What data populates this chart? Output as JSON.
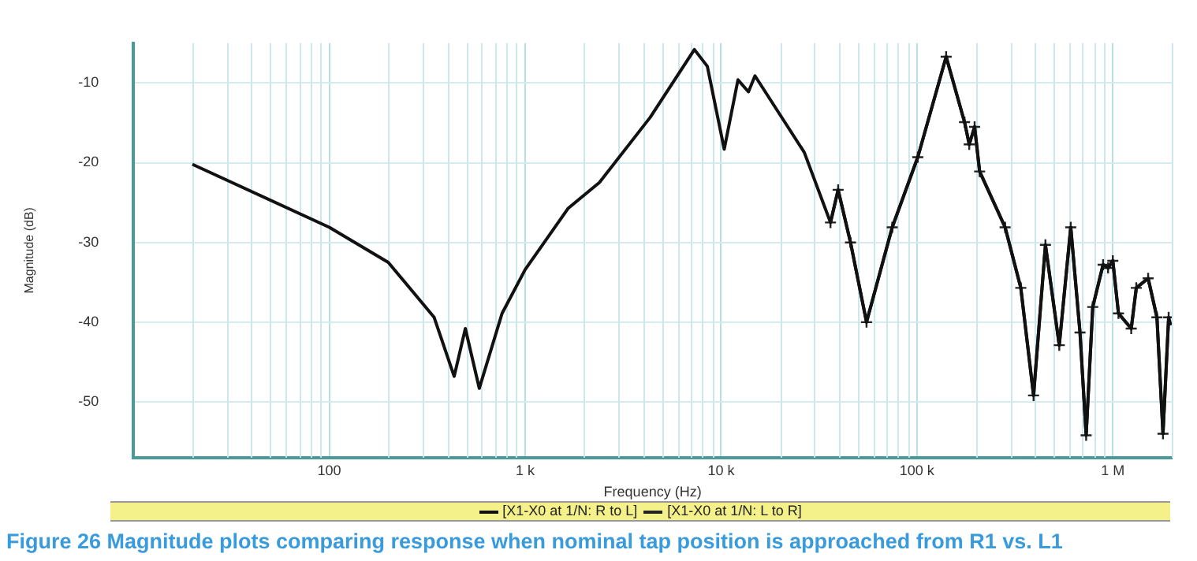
{
  "chart_data": {
    "type": "line",
    "xlabel": "Frequency (Hz)",
    "ylabel": "Magnitude (dB)",
    "log": "x",
    "grid": true,
    "legend": "bottom",
    "line_style": "solid",
    "xlim": [
      10,
      2000000
    ],
    "ylim": [
      -57,
      -5
    ],
    "xticks": [
      {
        "value": 100,
        "label": "100"
      },
      {
        "value": 1000,
        "label": "1 k"
      },
      {
        "value": 10000,
        "label": "10 k"
      },
      {
        "value": 100000,
        "label": "100 k"
      },
      {
        "value": 1000000,
        "label": "1 M"
      }
    ],
    "yticks": [
      -10,
      -20,
      -30,
      -40,
      -50
    ],
    "annotations": [
      "Figure 26 Magnitude plots comparing response when nominal tap position is approached from R1 vs. L1"
    ],
    "series": [
      {
        "name": "[X1-X0 at 1/N: R to L]",
        "color": "#111111",
        "marker": "none",
        "x": [
          20,
          100,
          200,
          343,
          434,
          495,
          583,
          762,
          1000,
          1660,
          2390,
          4350,
          7310,
          8510,
          10380,
          12200,
          13800,
          14900,
          26600,
          36200,
          39600,
          45800,
          55300,
          74800,
          101000,
          141000,
          175000,
          185000,
          197000,
          209000,
          282000,
          339000,
          394000,
          453000,
          533000,
          610000,
          680000,
          731000,
          790000,
          892000,
          946000,
          1000000,
          1069000,
          1242000,
          1318000,
          1515000,
          1680000,
          1804000,
          1928000,
          1977000
        ],
        "values": [
          -20.2,
          -28.1,
          -32.5,
          -39.4,
          -46.8,
          -40.8,
          -48.3,
          -38.9,
          -33.4,
          -25.7,
          -22.5,
          -14.3,
          -5.8,
          -7.9,
          -18.3,
          -9.6,
          -11.1,
          -9.1,
          -18.7,
          -27.5,
          -23.4,
          -30,
          -40,
          -28.1,
          -19.3,
          -6.7,
          -14.9,
          -17.7,
          -15.5,
          -21.1,
          -28.1,
          -35.7,
          -49.2,
          -30.3,
          -42.9,
          -28.1,
          -41.3,
          -54.2,
          -38.1,
          -32.8,
          -33.2,
          -32.3,
          -38.9,
          -40.8,
          -35.7,
          -34.5,
          -39.4,
          -54,
          -39.4,
          -40.4
        ]
      },
      {
        "name": "[X1-X0 at 1/N: L to R]",
        "color": "#222222",
        "marker": "cross",
        "x": [
          36200,
          39600,
          45800,
          55300,
          74800,
          101000,
          141000,
          175000,
          185000,
          197000,
          209000,
          282000,
          339000,
          394000,
          453000,
          533000,
          610000,
          680000,
          731000,
          790000,
          892000,
          946000,
          1000000,
          1069000,
          1242000,
          1318000,
          1515000,
          1680000,
          1804000,
          1928000
        ],
        "values": [
          -27.5,
          -23.4,
          -30,
          -40,
          -28.1,
          -19.3,
          -6.7,
          -14.9,
          -17.7,
          -15.5,
          -21.1,
          -28.1,
          -35.7,
          -49.2,
          -30.3,
          -42.9,
          -28.1,
          -41.3,
          -54.2,
          -38.1,
          -32.8,
          -33.2,
          -32.3,
          -38.9,
          -40.8,
          -35.7,
          -34.5,
          -39.4,
          -54,
          -39.4
        ]
      }
    ]
  }
}
